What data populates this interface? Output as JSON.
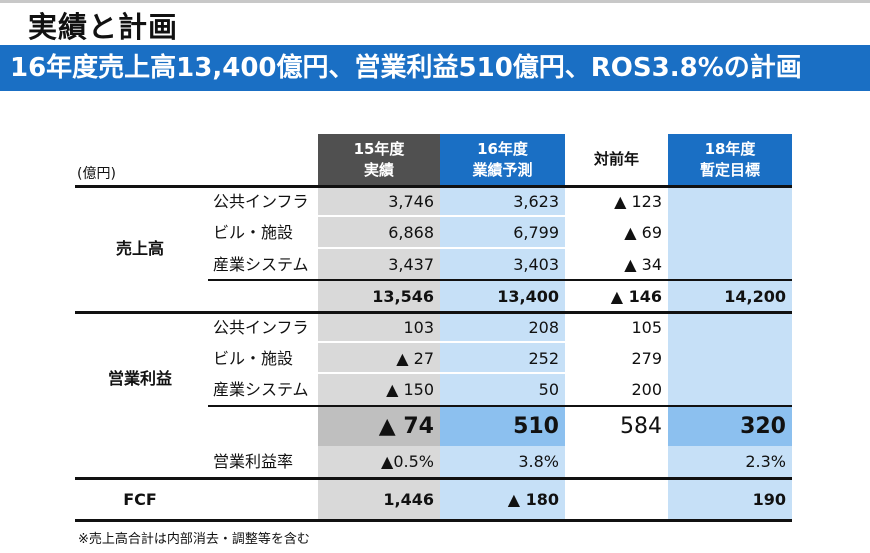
{
  "title": "実績と計画",
  "banner": "16年度売上高13,400億円、営業利益510億円、ROS3.8%の計画",
  "unit": "(億円)",
  "headers": {
    "c15": [
      "15年度",
      "実績"
    ],
    "c16": [
      "16年度",
      "業績予測"
    ],
    "yoy": "対前年",
    "c18": [
      "18年度",
      "暫定目標"
    ]
  },
  "sales": {
    "label": "売上高",
    "rows": [
      {
        "name": "公共インフラ",
        "c15": "3,746",
        "c16": "3,623",
        "yoy": "▲ 123",
        "c18": ""
      },
      {
        "name": "ビル・施設",
        "c15": "6,868",
        "c16": "6,799",
        "yoy": "▲ 69",
        "c18": ""
      },
      {
        "name": "産業システム",
        "c15": "3,437",
        "c16": "3,403",
        "yoy": "▲ 34",
        "c18": ""
      }
    ],
    "total": {
      "c15": "13,546",
      "c16": "13,400",
      "yoy": "▲ 146",
      "c18": "14,200"
    }
  },
  "op": {
    "label": "営業利益",
    "rows": [
      {
        "name": "公共インフラ",
        "c15": "103",
        "c16": "208",
        "yoy": "105",
        "c18": ""
      },
      {
        "name": "ビル・施設",
        "c15": "▲ 27",
        "c16": "252",
        "yoy": "279",
        "c18": ""
      },
      {
        "name": "産業システム",
        "c15": "▲ 150",
        "c16": "50",
        "yoy": "200",
        "c18": ""
      }
    ],
    "total": {
      "c15": "▲ 74",
      "c16": "510",
      "yoy": "584",
      "c18": "320"
    },
    "rate": {
      "name": "営業利益率",
      "c15": "▲0.5%",
      "c16": "3.8%",
      "yoy": "",
      "c18": "2.3%"
    }
  },
  "fcf": {
    "label": "FCF",
    "c15": "1,446",
    "c16": "▲ 180",
    "yoy": "",
    "c18": "190"
  },
  "footnote": "※売上高合計は内部消去・調整等を含む",
  "colors": {
    "brand": "#1a6fc4",
    "gray_header": "#505050",
    "gray_col": "#d9d9d9",
    "blue_col": "#c6e0f7",
    "highlight_blue": "#8cc0ef",
    "highlight_gray": "#bfbfbf"
  }
}
